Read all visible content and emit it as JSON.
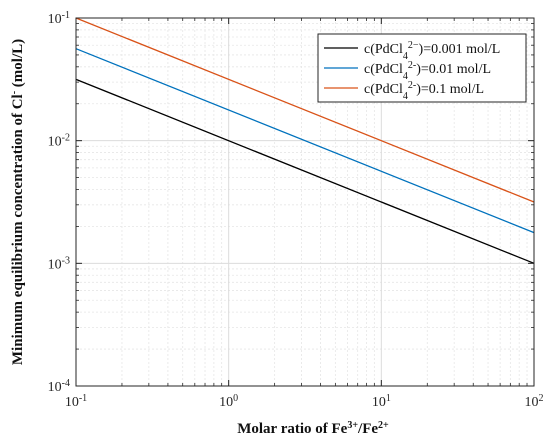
{
  "chart_data": {
    "type": "line",
    "title": "",
    "xlabel": {
      "main": "Molar ratio of Fe",
      "sup1": "3+",
      "mid": "/Fe",
      "sup2": "2+"
    },
    "ylabel": {
      "main": "Minimum equilibrium concentration of Cl",
      "sup": "-",
      "unit": " (mol/L)"
    },
    "x_scale": "log",
    "y_scale": "log",
    "xlim": [
      0.1,
      100
    ],
    "ylim": [
      0.0001,
      0.1
    ],
    "x_ticks": [
      {
        "value": 0.1,
        "base": "10",
        "exp": "-1"
      },
      {
        "value": 1,
        "base": "10",
        "exp": "0"
      },
      {
        "value": 10,
        "base": "10",
        "exp": "1"
      },
      {
        "value": 100,
        "base": "10",
        "exp": "2"
      }
    ],
    "y_ticks": [
      {
        "value": 0.0001,
        "base": "10",
        "exp": "-4"
      },
      {
        "value": 0.001,
        "base": "10",
        "exp": "-3"
      },
      {
        "value": 0.01,
        "base": "10",
        "exp": "-2"
      },
      {
        "value": 0.1,
        "base": "10",
        "exp": "-1"
      }
    ],
    "grid": true,
    "grid_minor": true,
    "legend_position": "top-right",
    "series": [
      {
        "legend": {
          "pre": "c(PdCl",
          "sub": "4",
          "sup": "2−",
          "post": ")=0.001 mol/L"
        },
        "color": "#000000",
        "x": [
          0.1,
          100
        ],
        "y": [
          0.0316,
          0.001
        ]
      },
      {
        "legend": {
          "pre": "c(PdCl",
          "sub": "4",
          "sup": "2-",
          "post": ")=0.01 mol/L"
        },
        "color": "#0072BD",
        "x": [
          0.1,
          100
        ],
        "y": [
          0.0562,
          0.00178
        ]
      },
      {
        "legend": {
          "pre": "c(PdCl",
          "sub": "4",
          "sup": "2-",
          "post": ")=0.1 mol/L"
        },
        "color": "#D95319",
        "x": [
          0.1,
          100
        ],
        "y": [
          0.1,
          0.00316
        ]
      }
    ]
  }
}
